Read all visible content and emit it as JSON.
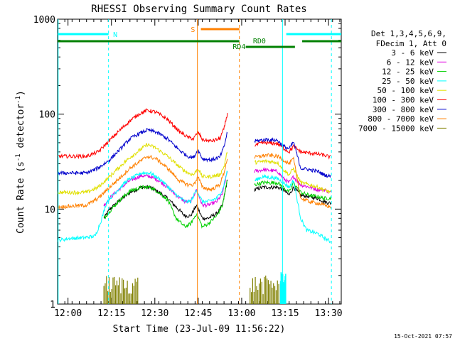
{
  "title": "RHESSI Observing Summary Count Rates",
  "footer_timestamp": "15-Oct-2021 07:57",
  "chart_data": {
    "type": "line",
    "title": "RHESSI Observing Summary Count Rates",
    "xlabel": "Start Time (23-Jul-09 11:56:22)",
    "ylabel": "Count Rate (s^-1 detector^-1)",
    "y_scale": "log",
    "ylim": [
      1,
      1000
    ],
    "xlim_minutes": [
      0,
      98
    ],
    "x_ticks": [
      {
        "label": "12:00",
        "t": 3.6
      },
      {
        "label": "12:15",
        "t": 18.6
      },
      {
        "label": "12:30",
        "t": 33.6
      },
      {
        "label": "12:45",
        "t": 48.6
      },
      {
        "label": "13:00",
        "t": 63.6
      },
      {
        "label": "13:15",
        "t": 78.6
      },
      {
        "label": "13:30",
        "t": 93.6
      }
    ],
    "y_ticks": [
      {
        "label": "1",
        "v": 1
      },
      {
        "label": "10",
        "v": 10
      },
      {
        "label": "100",
        "v": 100
      },
      {
        "label": "1000",
        "v": 1000
      }
    ],
    "legend": {
      "header": [
        "Det 1,3,4,5,6,9,",
        "FDecim 1, Att 0"
      ],
      "placement": "right"
    },
    "series": [
      {
        "name": "3 - 6 keV",
        "color": "#000000",
        "points": [
          [
            16,
            8
          ],
          [
            18,
            10
          ],
          [
            21,
            12
          ],
          [
            25,
            15
          ],
          [
            29,
            17
          ],
          [
            32,
            17
          ],
          [
            35,
            15
          ],
          [
            38,
            13
          ],
          [
            41,
            10.5
          ],
          [
            44,
            8.5
          ],
          [
            46,
            8.5
          ],
          [
            48,
            11
          ],
          [
            50,
            8
          ],
          [
            52,
            8
          ],
          [
            55,
            9
          ],
          [
            57,
            11
          ],
          [
            58.6,
            20
          ],
          [
            68,
            16
          ],
          [
            71,
            17
          ],
          [
            76,
            17
          ],
          [
            78,
            16
          ],
          [
            80,
            14
          ],
          [
            81.5,
            17
          ],
          [
            84,
            14
          ],
          [
            87,
            13.5
          ],
          [
            90,
            13
          ],
          [
            92,
            12
          ],
          [
            94.5,
            11.5
          ]
        ]
      },
      {
        "name": "6 - 12 keV",
        "color": "#e000e0",
        "points": [
          [
            16,
            11
          ],
          [
            18,
            13
          ],
          [
            21,
            16
          ],
          [
            25,
            20
          ],
          [
            29,
            22.5
          ],
          [
            32,
            22
          ],
          [
            35,
            20
          ],
          [
            38,
            17
          ],
          [
            41,
            14
          ],
          [
            44,
            12
          ],
          [
            46,
            12
          ],
          [
            48,
            16
          ],
          [
            50,
            11
          ],
          [
            52,
            11
          ],
          [
            55,
            12
          ],
          [
            57,
            14.5
          ],
          [
            58.6,
            25
          ],
          [
            68,
            25
          ],
          [
            71,
            26
          ],
          [
            76,
            25
          ],
          [
            78,
            21
          ],
          [
            80,
            19
          ],
          [
            81.5,
            22
          ],
          [
            84,
            18
          ],
          [
            87,
            17
          ],
          [
            90,
            16
          ],
          [
            92,
            16
          ],
          [
            94.5,
            15
          ]
        ]
      },
      {
        "name": "12 - 25 keV",
        "color": "#00d000",
        "points": [
          [
            16,
            8
          ],
          [
            18,
            9.5
          ],
          [
            21,
            12
          ],
          [
            25,
            15.5
          ],
          [
            29,
            17
          ],
          [
            32,
            17
          ],
          [
            35,
            15
          ],
          [
            38,
            12.5
          ],
          [
            41,
            8
          ],
          [
            44,
            6.5
          ],
          [
            46,
            7
          ],
          [
            48,
            9
          ],
          [
            50,
            6.5
          ],
          [
            52,
            7
          ],
          [
            55,
            8.5
          ],
          [
            57,
            11
          ],
          [
            58.6,
            20
          ],
          [
            68,
            18
          ],
          [
            71,
            19
          ],
          [
            76,
            19
          ],
          [
            78,
            17
          ],
          [
            80,
            15
          ],
          [
            81.5,
            19
          ],
          [
            84,
            15
          ],
          [
            87,
            14
          ],
          [
            90,
            13.5
          ],
          [
            92,
            13
          ],
          [
            94.5,
            13
          ]
        ]
      },
      {
        "name": "25 - 50 keV",
        "color": "#00ffff",
        "points": [
          [
            0,
            4.7
          ],
          [
            4,
            4.9
          ],
          [
            9,
            5
          ],
          [
            13,
            5.2
          ],
          [
            15,
            7.5
          ],
          [
            17,
            12
          ],
          [
            20,
            15
          ],
          [
            24,
            20
          ],
          [
            29,
            24
          ],
          [
            32,
            24
          ],
          [
            36,
            20
          ],
          [
            40,
            15
          ],
          [
            44,
            12
          ],
          [
            46,
            12
          ],
          [
            48,
            16
          ],
          [
            50,
            12
          ],
          [
            52,
            12
          ],
          [
            55,
            13
          ],
          [
            57,
            16
          ],
          [
            58.6,
            25
          ],
          [
            68,
            20
          ],
          [
            71,
            22
          ],
          [
            76,
            21
          ],
          [
            78,
            19
          ],
          [
            80,
            17
          ],
          [
            81.5,
            20
          ],
          [
            84,
            8
          ],
          [
            86,
            6
          ],
          [
            90,
            5.5
          ],
          [
            92,
            5
          ],
          [
            94.5,
            4.5
          ]
        ]
      },
      {
        "name": "50 - 100 keV",
        "color": "#e0e000",
        "points": [
          [
            0,
            15
          ],
          [
            10,
            15
          ],
          [
            14,
            17
          ],
          [
            18,
            22
          ],
          [
            22,
            29
          ],
          [
            25,
            35
          ],
          [
            28,
            41
          ],
          [
            31,
            48
          ],
          [
            34,
            44
          ],
          [
            38,
            36
          ],
          [
            42,
            28
          ],
          [
            45,
            24
          ],
          [
            47,
            23
          ],
          [
            48.5,
            27
          ],
          [
            50,
            22
          ],
          [
            53,
            22
          ],
          [
            56,
            23
          ],
          [
            57.5,
            28
          ],
          [
            58.6,
            40
          ],
          [
            68,
            31
          ],
          [
            72,
            32
          ],
          [
            76,
            31
          ],
          [
            78,
            26
          ],
          [
            80,
            23
          ],
          [
            81.5,
            27
          ],
          [
            84,
            19
          ],
          [
            87,
            18
          ],
          [
            90,
            17
          ],
          [
            92,
            16
          ],
          [
            94.5,
            15
          ]
        ]
      },
      {
        "name": "100 - 300 keV",
        "color": "#ff0000",
        "points": [
          [
            0,
            36
          ],
          [
            10,
            36
          ],
          [
            14,
            40
          ],
          [
            18,
            53
          ],
          [
            22,
            70
          ],
          [
            25,
            85
          ],
          [
            28,
            100
          ],
          [
            31,
            110
          ],
          [
            34,
            105
          ],
          [
            38,
            88
          ],
          [
            42,
            66
          ],
          [
            45,
            57
          ],
          [
            47,
            55
          ],
          [
            48.5,
            65
          ],
          [
            50,
            54
          ],
          [
            53,
            52
          ],
          [
            56,
            55
          ],
          [
            57.5,
            70
          ],
          [
            58.6,
            100
          ],
          [
            68,
            47
          ],
          [
            71,
            50
          ],
          [
            76,
            49
          ],
          [
            78,
            44
          ],
          [
            80,
            40
          ],
          [
            81.5,
            46
          ],
          [
            84,
            40
          ],
          [
            87,
            39
          ],
          [
            90,
            38
          ],
          [
            92,
            37
          ],
          [
            94.5,
            35
          ]
        ]
      },
      {
        "name": "300 - 800 keV",
        "color": "#0000cc",
        "points": [
          [
            0,
            24
          ],
          [
            10,
            24
          ],
          [
            14,
            27
          ],
          [
            18,
            33
          ],
          [
            22,
            44
          ],
          [
            25,
            55
          ],
          [
            28,
            62
          ],
          [
            31,
            68
          ],
          [
            34,
            65
          ],
          [
            38,
            55
          ],
          [
            42,
            42
          ],
          [
            45,
            36
          ],
          [
            47,
            35
          ],
          [
            48.5,
            42
          ],
          [
            50,
            34
          ],
          [
            53,
            33
          ],
          [
            56,
            35
          ],
          [
            57.5,
            45
          ],
          [
            58.6,
            64
          ],
          [
            68,
            52
          ],
          [
            72,
            54
          ],
          [
            76,
            53
          ],
          [
            78,
            46
          ],
          [
            80,
            43
          ],
          [
            81.5,
            51
          ],
          [
            84,
            27
          ],
          [
            87,
            26
          ],
          [
            90,
            25
          ],
          [
            92,
            23
          ],
          [
            94.5,
            22
          ]
        ]
      },
      {
        "name": "800 - 7000 keV",
        "color": "#ff8000",
        "points": [
          [
            0,
            10.5
          ],
          [
            10,
            11
          ],
          [
            14,
            13
          ],
          [
            18,
            17
          ],
          [
            22,
            22
          ],
          [
            25,
            27
          ],
          [
            28,
            31
          ],
          [
            31,
            36
          ],
          [
            34,
            34
          ],
          [
            38,
            27
          ],
          [
            42,
            20
          ],
          [
            45,
            18
          ],
          [
            47,
            18
          ],
          [
            48.5,
            22
          ],
          [
            50,
            17
          ],
          [
            53,
            16
          ],
          [
            56,
            18
          ],
          [
            57.5,
            24
          ],
          [
            58.6,
            34
          ],
          [
            68,
            35
          ],
          [
            72,
            37
          ],
          [
            76,
            36
          ],
          [
            78,
            33
          ],
          [
            80,
            30
          ],
          [
            81.5,
            34
          ],
          [
            84,
            13
          ],
          [
            87,
            12
          ],
          [
            90,
            11.5
          ],
          [
            92,
            11
          ],
          [
            94.5,
            10.5
          ]
        ]
      },
      {
        "name": "7000 - 15000 keV",
        "color": "#808000",
        "points": [
          [
            16,
            1
          ],
          [
            16,
            2
          ],
          [
            28,
            2
          ],
          [
            28,
            1
          ]
        ]
      }
    ],
    "annotations": {
      "segments": [
        {
          "label": "N",
          "color": "#00ffff"
        },
        {
          "label": "S",
          "color": "#ff8000"
        },
        {
          "label": "RD0",
          "color": "#008000"
        },
        {
          "label": "RD4",
          "color": "#008000"
        }
      ]
    }
  }
}
